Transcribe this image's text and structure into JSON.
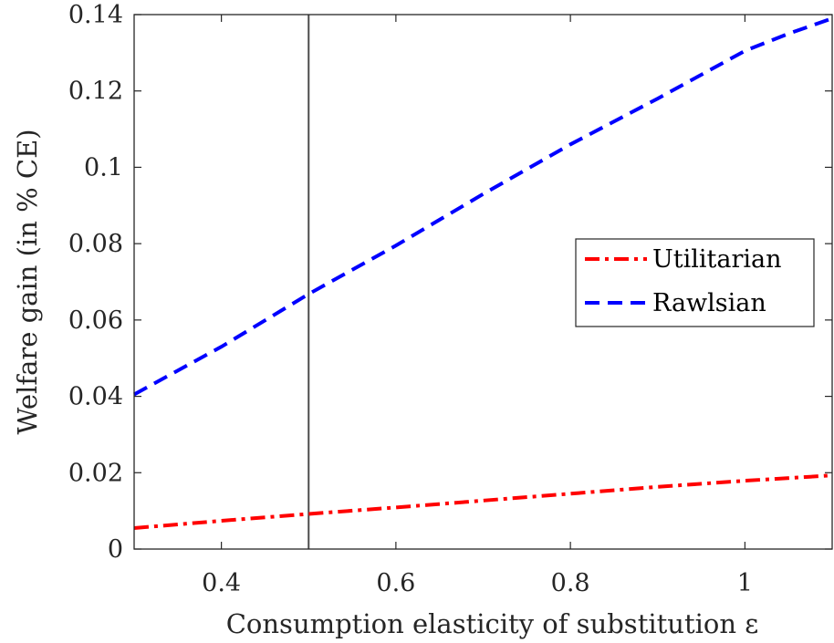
{
  "chart_data": {
    "type": "line",
    "xlabel": "Consumption elasticity of substitution ε",
    "ylabel": "Welfare gain (in % CE)",
    "xlim": [
      0.3,
      1.1
    ],
    "ylim": [
      0,
      0.14
    ],
    "xticks": [
      0.4,
      0.6,
      0.8,
      1.0
    ],
    "xtick_labels": [
      "0.4",
      "0.6",
      "0.8",
      "1"
    ],
    "yticks": [
      0,
      0.02,
      0.04,
      0.06,
      0.08,
      0.1,
      0.12,
      0.14
    ],
    "ytick_labels": [
      "0",
      "0.02",
      "0.04",
      "0.06",
      "0.08",
      "0.1",
      "0.12",
      "0.14"
    ],
    "grid": false,
    "legend_position": "right",
    "vertical_reference_line_x": 0.5,
    "series": [
      {
        "name": "Utilitarian",
        "color": "#ff0000",
        "dash": "dash-dot",
        "x": [
          0.3,
          0.4,
          0.5,
          0.6,
          0.7,
          0.8,
          0.9,
          1.0,
          1.1
        ],
        "y": [
          0.0055,
          0.0074,
          0.0092,
          0.0109,
          0.0127,
          0.0145,
          0.0163,
          0.0179,
          0.0193
        ]
      },
      {
        "name": "Rawlsian",
        "color": "#0000ff",
        "dash": "dashed",
        "x": [
          0.3,
          0.4,
          0.5,
          0.6,
          0.7,
          0.8,
          0.9,
          1.0,
          1.05,
          1.1
        ],
        "y": [
          0.0405,
          0.053,
          0.0668,
          0.0795,
          0.093,
          0.106,
          0.118,
          0.1305,
          0.135,
          0.139
        ]
      }
    ]
  }
}
